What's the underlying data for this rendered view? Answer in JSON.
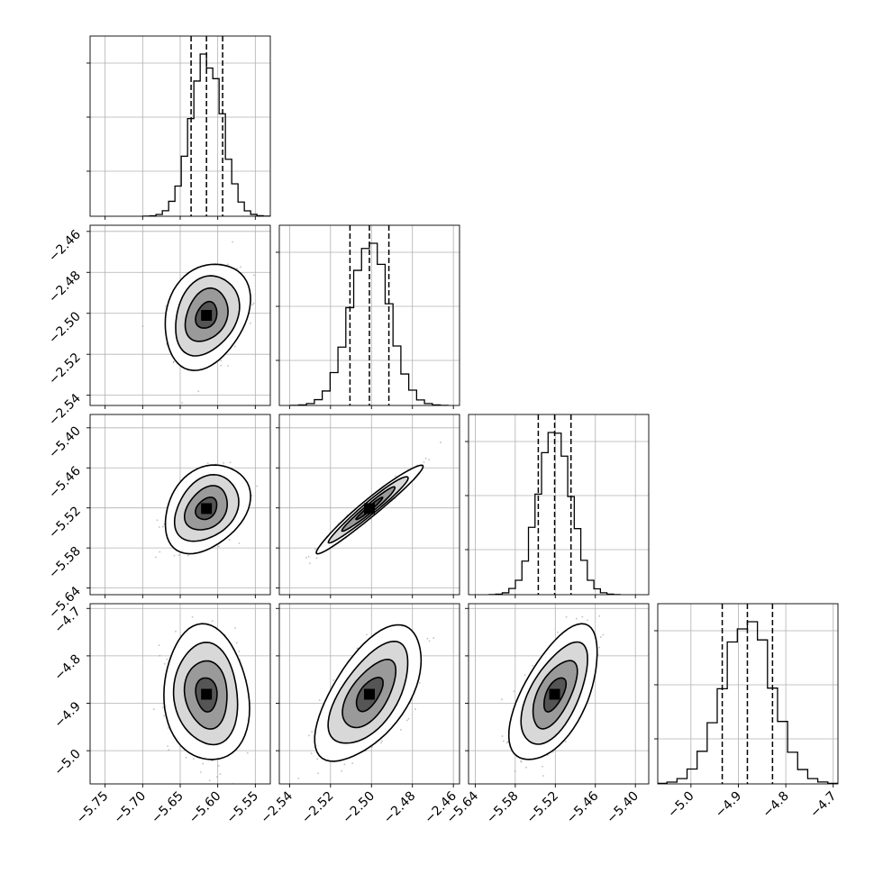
{
  "chart_data": {
    "type": "corner",
    "grid": true,
    "colors": {
      "line": "#000000",
      "grid": "#b0b0b0",
      "points": "#8c8c8c",
      "fill_dark": "#000000",
      "fill_light": "#f0f0f0"
    },
    "params": [
      {
        "range": [
          -5.77,
          -5.53
        ],
        "ticks": [
          -5.75,
          -5.7,
          -5.65,
          -5.6,
          -5.55
        ],
        "tick_labels": [
          "−5.75",
          "−5.70",
          "−5.65",
          "−5.60",
          "−5.55"
        ],
        "mean": -5.615,
        "sd": 0.021,
        "quantiles": [
          -5.6355,
          -5.615,
          -5.5935
        ]
      },
      {
        "range": [
          -2.545,
          -2.457
        ],
        "ticks": [
          -2.54,
          -2.52,
          -2.5,
          -2.48,
          -2.46
        ],
        "tick_labels": [
          "−2.54",
          "−2.52",
          "−2.50",
          "−2.48",
          "−2.46"
        ],
        "mean": -2.501,
        "sd": 0.0096,
        "quantiles": [
          -2.5105,
          -2.501,
          -2.4915
        ]
      },
      {
        "range": [
          -5.65,
          -5.38
        ],
        "ticks": [
          -5.64,
          -5.58,
          -5.52,
          -5.46,
          -5.4
        ],
        "tick_labels": [
          "−5.64",
          "−5.58",
          "−5.52",
          "−5.46",
          "−5.40"
        ],
        "mean": -5.521,
        "sd": 0.0245,
        "quantiles": [
          -5.5455,
          -5.521,
          -5.4965
        ]
      },
      {
        "range": [
          -5.07,
          -4.69
        ],
        "ticks": [
          -5.0,
          -4.9,
          -4.8,
          -4.7
        ],
        "tick_labels": [
          "−5.0",
          "−4.9",
          "−4.8",
          "−4.7"
        ],
        "mean": -4.881,
        "sd": 0.053,
        "quantiles": [
          -4.934,
          -4.881,
          -4.828
        ]
      }
    ],
    "correlations": [
      [
        1.0,
        0.25,
        0.3,
        -0.1
      ],
      [
        0.25,
        1.0,
        0.97,
        0.6
      ],
      [
        0.3,
        0.97,
        1.0,
        0.6
      ],
      [
        -0.1,
        0.6,
        0.6,
        1.0
      ]
    ],
    "diagonal_histogram_bins": 20,
    "contour_levels_sigma": [
      0.5,
      1.0,
      1.5,
      2.0
    ]
  }
}
